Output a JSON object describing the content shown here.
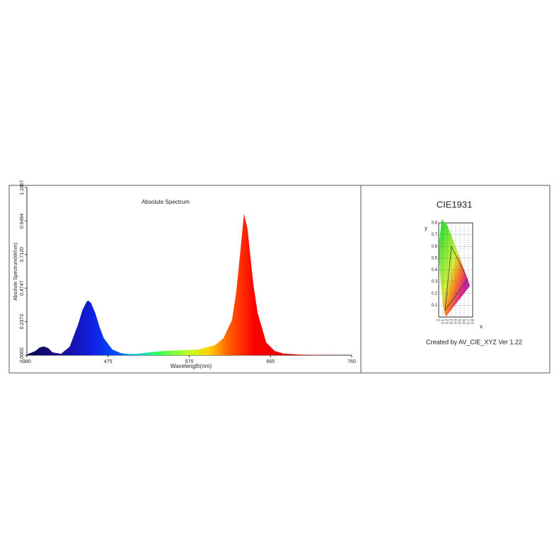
{
  "chart_data": [
    {
      "type": "spectrum",
      "title": "Absolute Spectrum",
      "xlabel": "Wavelength(nm)",
      "ylabel": "Absolute Spectrum(W/nm)",
      "x": [
        380,
        390,
        395,
        400,
        405,
        410,
        420,
        430,
        440,
        445,
        450,
        452,
        455,
        460,
        465,
        470,
        480,
        490,
        500,
        510,
        520,
        540,
        560,
        580,
        600,
        610,
        620,
        625,
        630,
        634,
        638,
        645,
        650,
        660,
        670,
        680,
        700,
        730,
        760
      ],
      "values": [
        0.005,
        0.03,
        0.055,
        0.062,
        0.05,
        0.02,
        0.01,
        0.06,
        0.22,
        0.32,
        0.38,
        0.386,
        0.37,
        0.3,
        0.2,
        0.12,
        0.04,
        0.015,
        0.008,
        0.01,
        0.018,
        0.03,
        0.035,
        0.04,
        0.07,
        0.12,
        0.25,
        0.45,
        0.75,
        1.0,
        0.9,
        0.5,
        0.3,
        0.09,
        0.03,
        0.012,
        0.004,
        0.001,
        0
      ],
      "xlim": [
        380,
        760
      ],
      "xticks": [
        380,
        475,
        570,
        665,
        760
      ],
      "ylim": [
        0,
        1.1867
      ],
      "yticks": [
        {
          "value": 0,
          "label": "0.0000"
        },
        0.2373,
        0.4747,
        {
          "value": 0.712,
          "label": "0.7120"
        },
        0.9494,
        1.1867
      ]
    },
    {
      "type": "cie",
      "title": "CIE1931",
      "xlabel": "x",
      "ylabel": "y",
      "caption": "Created by AV_CIE_XYZ Ver 1.22",
      "xlim": [
        0,
        0.8
      ],
      "xticks": [
        0,
        0.1,
        0.2,
        0.3,
        0.4,
        0.5,
        0.6,
        0.7,
        0.8
      ],
      "ylim": [
        0,
        0.8
      ],
      "yticks": [
        0.1,
        0.2,
        0.3,
        0.4,
        0.5,
        0.6,
        0.7,
        0.8
      ],
      "grid": true
    }
  ]
}
